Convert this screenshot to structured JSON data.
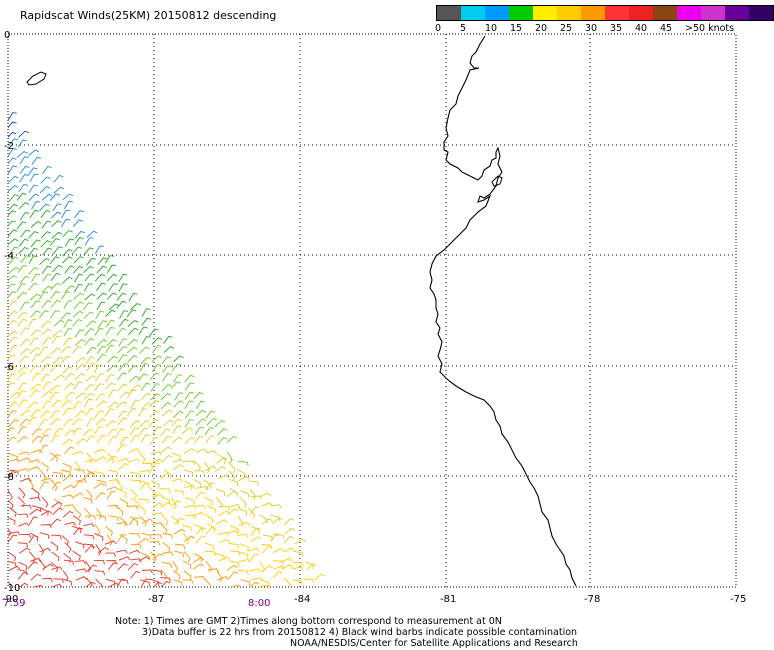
{
  "title": "Rapidscat Winds(25KM) 20150812 descending",
  "legend": {
    "colors": [
      "#555555",
      "#00ccee",
      "#0099ff",
      "#00cc00",
      "#ffee00",
      "#ffcc00",
      "#ff9900",
      "#ff3333",
      "#ee2222",
      "#8b4513",
      "#ee00ee",
      "#cc33cc",
      "#660099",
      "#330066"
    ],
    "labels": [
      "0",
      "5",
      "10",
      "15",
      "20",
      "25",
      "30",
      "35",
      "40",
      "45",
      ">50 knots"
    ]
  },
  "axes": {
    "x_ticks": [
      "-90",
      "-87",
      "-84",
      "-81",
      "-78",
      "-75"
    ],
    "y_ticks": [
      "0",
      "-2",
      "-4",
      "-6",
      "-8",
      "-10"
    ]
  },
  "times": {
    "left": "7:59",
    "middle": "8:00"
  },
  "notes": {
    "line1": "Note: 1) Times are GMT 2)Times along bottom correspond to measurement at 0N",
    "line2": "3)Data buffer is 22 hrs from 20150812 4) Black wind barbs indicate possible contamination",
    "line3": "NOAA/NESDIS/Center for Satellite Applications and Research"
  }
}
